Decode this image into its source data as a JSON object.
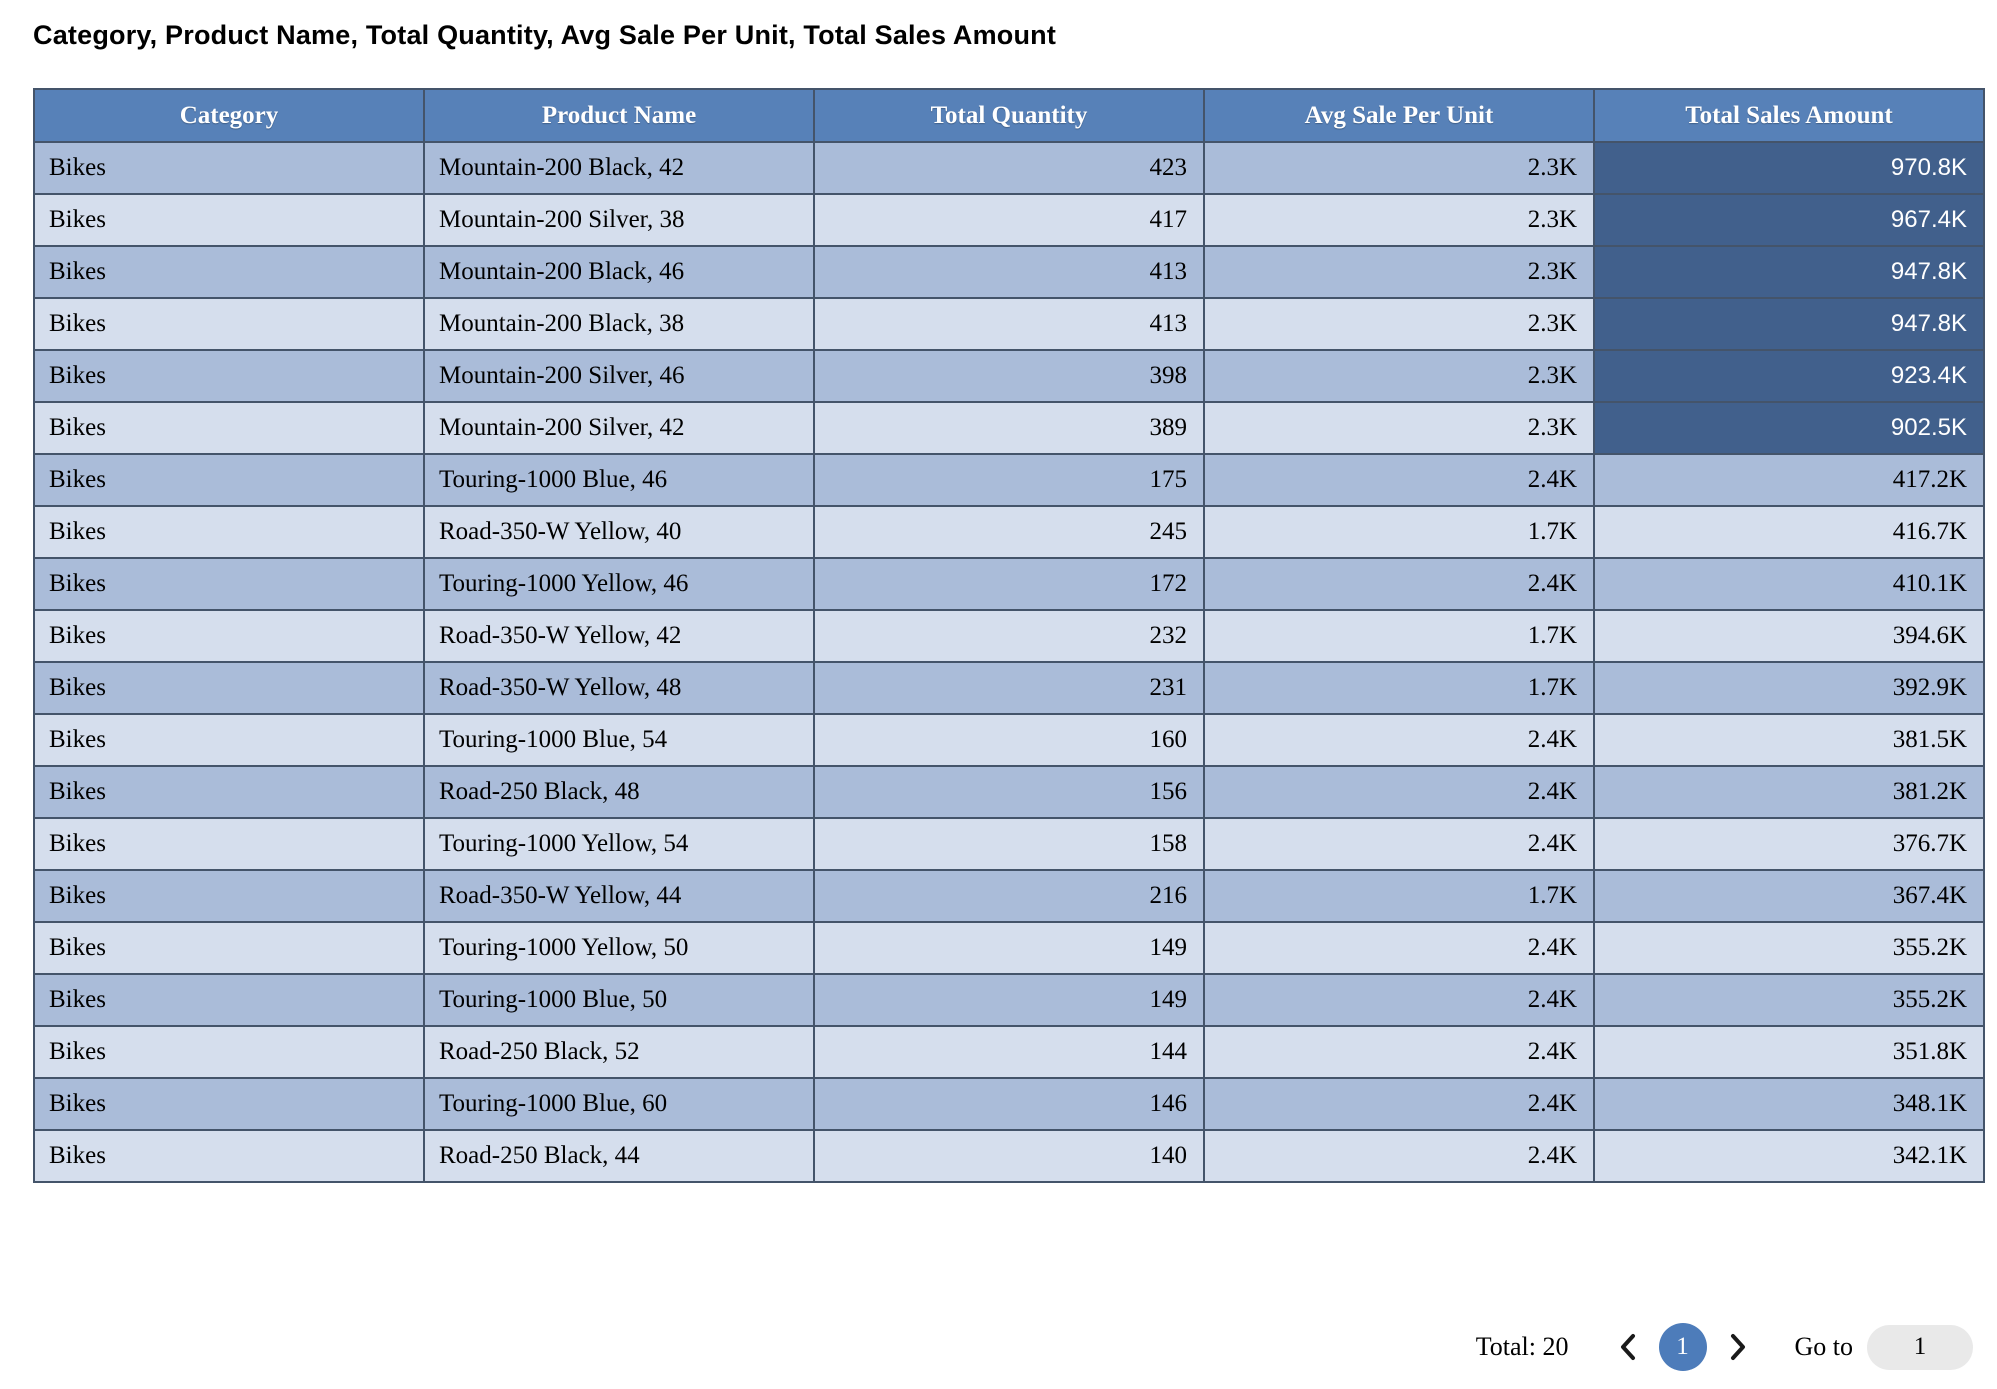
{
  "title": "Category, Product Name, Total Quantity, Avg Sale Per Unit, Total Sales Amount",
  "table": {
    "columns": [
      "Category",
      "Product Name",
      "Total Quantity",
      "Avg Sale Per Unit",
      "Total Sales Amount"
    ],
    "rows": [
      {
        "category": "Bikes",
        "product": "Mountain-200 Black, 42",
        "quantity": "423",
        "avg": "2.3K",
        "total": "970.8K",
        "highlight": true
      },
      {
        "category": "Bikes",
        "product": "Mountain-200 Silver, 38",
        "quantity": "417",
        "avg": "2.3K",
        "total": "967.4K",
        "highlight": true
      },
      {
        "category": "Bikes",
        "product": "Mountain-200 Black, 46",
        "quantity": "413",
        "avg": "2.3K",
        "total": "947.8K",
        "highlight": true
      },
      {
        "category": "Bikes",
        "product": "Mountain-200 Black, 38",
        "quantity": "413",
        "avg": "2.3K",
        "total": "947.8K",
        "highlight": true
      },
      {
        "category": "Bikes",
        "product": "Mountain-200 Silver, 46",
        "quantity": "398",
        "avg": "2.3K",
        "total": "923.4K",
        "highlight": true
      },
      {
        "category": "Bikes",
        "product": "Mountain-200 Silver, 42",
        "quantity": "389",
        "avg": "2.3K",
        "total": "902.5K",
        "highlight": true
      },
      {
        "category": "Bikes",
        "product": "Touring-1000 Blue, 46",
        "quantity": "175",
        "avg": "2.4K",
        "total": "417.2K",
        "highlight": false
      },
      {
        "category": "Bikes",
        "product": "Road-350-W Yellow, 40",
        "quantity": "245",
        "avg": "1.7K",
        "total": "416.7K",
        "highlight": false
      },
      {
        "category": "Bikes",
        "product": "Touring-1000 Yellow, 46",
        "quantity": "172",
        "avg": "2.4K",
        "total": "410.1K",
        "highlight": false
      },
      {
        "category": "Bikes",
        "product": "Road-350-W Yellow, 42",
        "quantity": "232",
        "avg": "1.7K",
        "total": "394.6K",
        "highlight": false
      },
      {
        "category": "Bikes",
        "product": "Road-350-W Yellow, 48",
        "quantity": "231",
        "avg": "1.7K",
        "total": "392.9K",
        "highlight": false
      },
      {
        "category": "Bikes",
        "product": "Touring-1000 Blue, 54",
        "quantity": "160",
        "avg": "2.4K",
        "total": "381.5K",
        "highlight": false
      },
      {
        "category": "Bikes",
        "product": "Road-250 Black, 48",
        "quantity": "156",
        "avg": "2.4K",
        "total": "381.2K",
        "highlight": false
      },
      {
        "category": "Bikes",
        "product": "Touring-1000 Yellow, 54",
        "quantity": "158",
        "avg": "2.4K",
        "total": "376.7K",
        "highlight": false
      },
      {
        "category": "Bikes",
        "product": "Road-350-W Yellow, 44",
        "quantity": "216",
        "avg": "1.7K",
        "total": "367.4K",
        "highlight": false
      },
      {
        "category": "Bikes",
        "product": "Touring-1000 Yellow, 50",
        "quantity": "149",
        "avg": "2.4K",
        "total": "355.2K",
        "highlight": false
      },
      {
        "category": "Bikes",
        "product": "Touring-1000 Blue, 50",
        "quantity": "149",
        "avg": "2.4K",
        "total": "355.2K",
        "highlight": false
      },
      {
        "category": "Bikes",
        "product": "Road-250 Black, 52",
        "quantity": "144",
        "avg": "2.4K",
        "total": "351.8K",
        "highlight": false
      },
      {
        "category": "Bikes",
        "product": "Touring-1000 Blue, 60",
        "quantity": "146",
        "avg": "2.4K",
        "total": "348.1K",
        "highlight": false
      },
      {
        "category": "Bikes",
        "product": "Road-250 Black, 44",
        "quantity": "140",
        "avg": "2.4K",
        "total": "342.1K",
        "highlight": false
      }
    ]
  },
  "pagination": {
    "total_label": "Total: 20",
    "prev_icon": "chevron-left",
    "current_page": "1",
    "next_icon": "chevron-right",
    "goto_label": "Go to",
    "goto_value": "1"
  },
  "colors": {
    "header_bg": "#5781b8",
    "row_odd": "#aabcd9",
    "row_even": "#d5deed",
    "highlight_bg": "#41608c",
    "border": "#44546a",
    "page_circle": "#4d7cba",
    "goto_pill": "#e9e9e9"
  }
}
